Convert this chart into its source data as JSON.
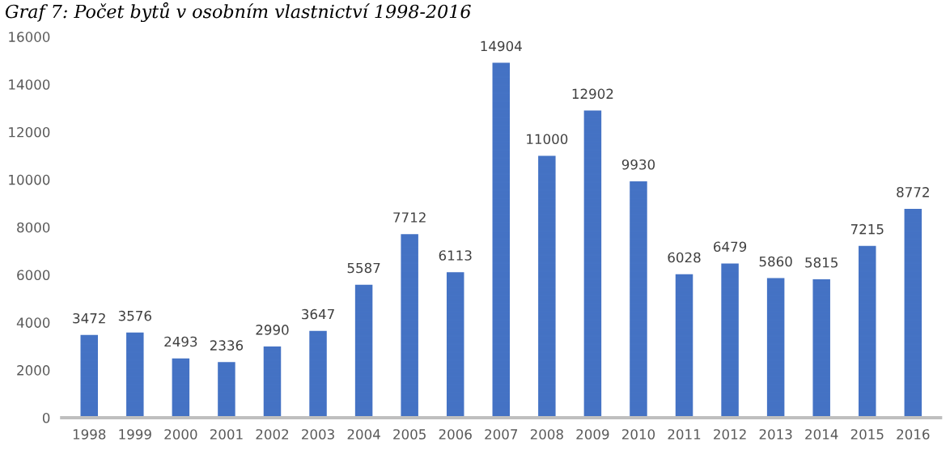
{
  "chart_data": {
    "type": "bar",
    "title": "Graf 7: Počet bytů v osobním vlastnictví 1998-2016",
    "categories": [
      "1998",
      "1999",
      "2000",
      "2001",
      "2002",
      "2003",
      "2004",
      "2005",
      "2006",
      "2007",
      "2008",
      "2009",
      "2010",
      "2011",
      "2012",
      "2013",
      "2014",
      "2015",
      "2016"
    ],
    "values": [
      3472,
      3576,
      2493,
      2336,
      2990,
      3647,
      5587,
      7712,
      6113,
      14904,
      11000,
      12902,
      9930,
      6028,
      6479,
      5860,
      5815,
      7215,
      8772
    ],
    "color": "#4472c4",
    "ylim": [
      0,
      16000
    ],
    "yticks": [
      0,
      2000,
      4000,
      6000,
      8000,
      10000,
      12000,
      14000,
      16000
    ],
    "grid": false,
    "data_labels": true
  }
}
